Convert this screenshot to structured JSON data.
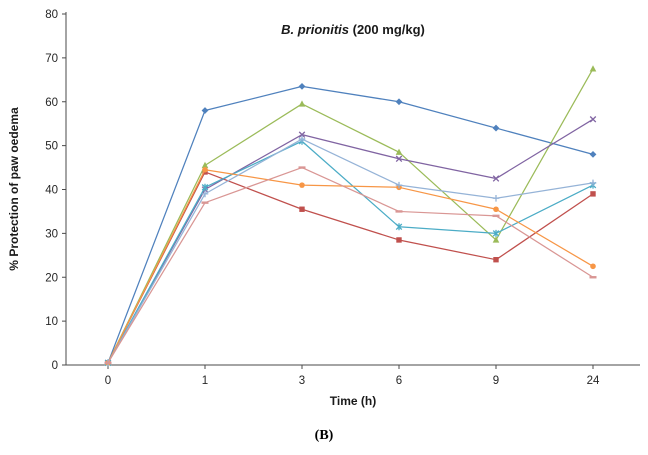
{
  "figure": {
    "title_italic": "B. prionitis",
    "title_rest": " (200 mg/kg)",
    "ylabel": "% Protection of paw oedema",
    "xlabel": "Time (h)",
    "caption": "(B)"
  },
  "chart_data": {
    "type": "line",
    "title": "B. prionitis (200 mg/kg)",
    "xlabel": "Time (h)",
    "ylabel": "% Protection of paw oedema",
    "categories": [
      "0",
      "1",
      "3",
      "6",
      "9",
      "24"
    ],
    "ylim": [
      0,
      80
    ],
    "ytick_step": 10,
    "grid": false,
    "legend": "none",
    "axis_color": "#4a4a4a",
    "tick_label_color": "#262626",
    "series": [
      {
        "name": "series-1-blue",
        "color": "#4F81BD",
        "marker": "diamond",
        "values": [
          0.5,
          58,
          63.5,
          60,
          54,
          48
        ]
      },
      {
        "name": "series-2-dark-red",
        "color": "#C0504D",
        "marker": "square",
        "values": [
          0.5,
          44,
          35.5,
          28.5,
          24,
          39
        ]
      },
      {
        "name": "series-3-green",
        "color": "#9BBB59",
        "marker": "triangle",
        "values": [
          0.5,
          45.5,
          59.5,
          48.5,
          28.5,
          67.5
        ]
      },
      {
        "name": "series-4-purple",
        "color": "#8064A2",
        "marker": "x",
        "values": [
          0.5,
          40,
          52.5,
          47,
          42.5,
          56
        ]
      },
      {
        "name": "series-5-teal",
        "color": "#4BACC6",
        "marker": "asterisk",
        "values": [
          0.5,
          40.5,
          51,
          31.5,
          30,
          41
        ]
      },
      {
        "name": "series-6-orange",
        "color": "#F79646",
        "marker": "circle",
        "values": [
          0.5,
          44.5,
          41,
          40.5,
          35.5,
          22.5
        ]
      },
      {
        "name": "series-7-light-blue",
        "color": "#95B3D7",
        "marker": "plus",
        "values": [
          0.5,
          39,
          51.5,
          41,
          38,
          41.5
        ]
      },
      {
        "name": "series-8-pink",
        "color": "#D99694",
        "marker": "dash",
        "values": [
          0.5,
          37,
          45,
          35,
          34,
          20
        ]
      }
    ]
  }
}
